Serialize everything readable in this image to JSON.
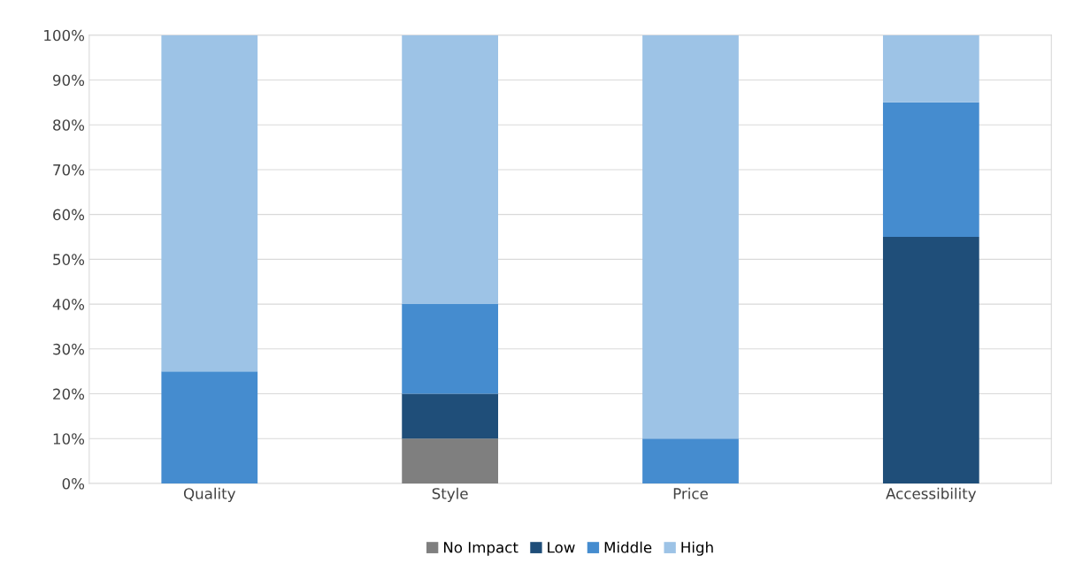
{
  "chart_data": {
    "type": "bar",
    "stacked": true,
    "categories": [
      "Quality",
      "Style",
      "Price",
      "Accessibility"
    ],
    "series": [
      {
        "name": "No Impact",
        "color": "#7f7f7f",
        "values": [
          0,
          10,
          0,
          0
        ]
      },
      {
        "name": "Low",
        "color": "#1f4e79",
        "values": [
          0,
          10,
          0,
          55
        ]
      },
      {
        "name": "Middle",
        "color": "#458ccf",
        "values": [
          25,
          20,
          10,
          30
        ]
      },
      {
        "name": "High",
        "color": "#9dc3e6",
        "values": [
          75,
          60,
          90,
          15
        ]
      }
    ],
    "ylim": [
      0,
      100
    ],
    "yticks": [
      {
        "value": 0,
        "label": "0%"
      },
      {
        "value": 10,
        "label": "10%"
      },
      {
        "value": 20,
        "label": "20%"
      },
      {
        "value": 30,
        "label": "30%"
      },
      {
        "value": 40,
        "label": "40%"
      },
      {
        "value": 50,
        "label": "50%"
      },
      {
        "value": 60,
        "label": "60%"
      },
      {
        "value": 70,
        "label": "70%"
      },
      {
        "value": 80,
        "label": "80%"
      },
      {
        "value": 90,
        "label": "90%"
      },
      {
        "value": 100,
        "label": "100%"
      }
    ],
    "grid": "y",
    "legend": "bottom"
  }
}
